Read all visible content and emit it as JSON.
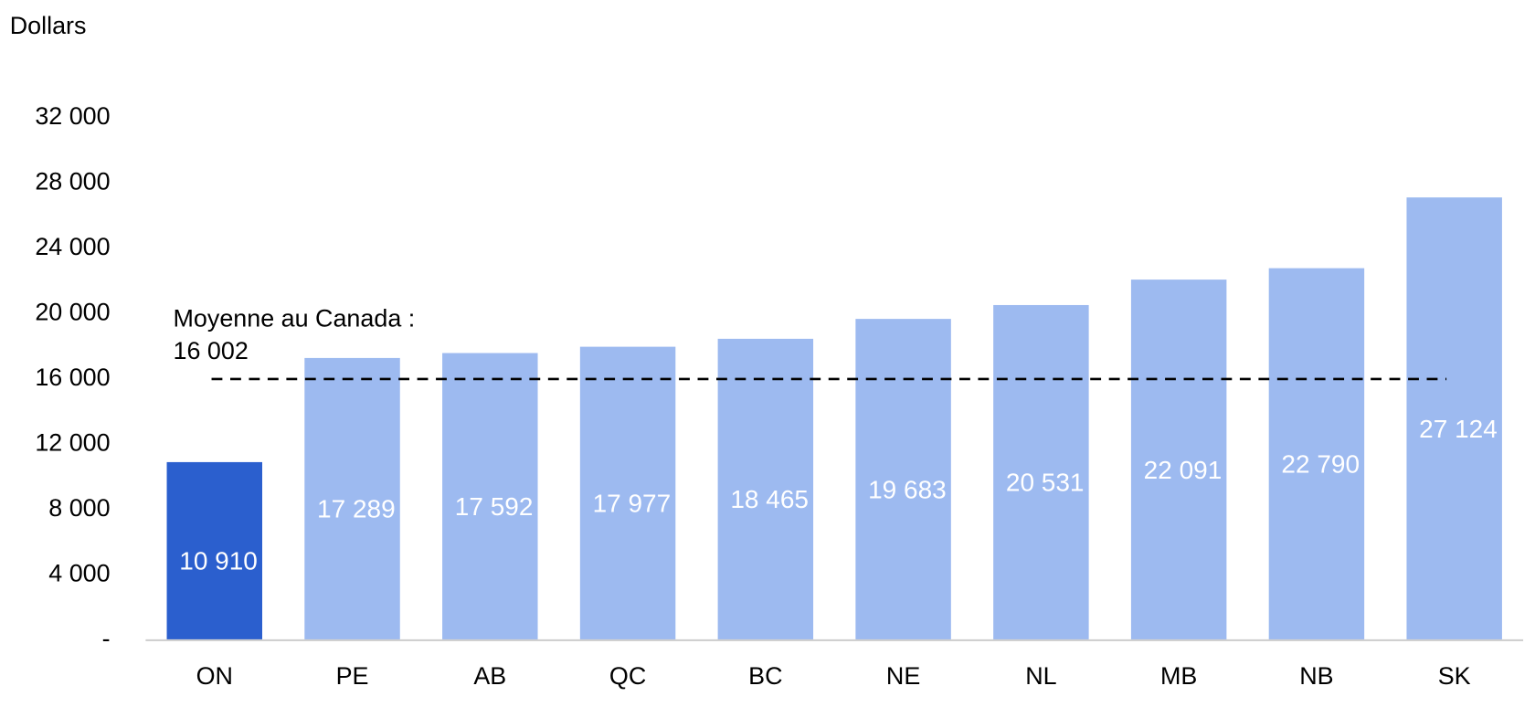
{
  "chart_data": {
    "type": "bar",
    "y_axis_label": "Dollars",
    "categories": [
      "ON",
      "PE",
      "AB",
      "QC",
      "BC",
      "NE",
      "NL",
      "MB",
      "NB",
      "SK"
    ],
    "values": [
      10910,
      17289,
      17592,
      17977,
      18465,
      19683,
      20531,
      22091,
      22790,
      27124
    ],
    "value_labels": [
      "10 910",
      "17 289",
      "17 592",
      "17 977",
      "18 465",
      "19 683",
      "20 531",
      "22 091",
      "22 790",
      "27 124"
    ],
    "colors": [
      "#2b5fce",
      "#9dbaf0",
      "#9dbaf0",
      "#9dbaf0",
      "#9dbaf0",
      "#9dbaf0",
      "#9dbaf0",
      "#9dbaf0",
      "#9dbaf0",
      "#9dbaf0"
    ],
    "ylim": [
      0,
      32000
    ],
    "yticks": [
      {
        "value": 0,
        "label": "-"
      },
      {
        "value": 4000,
        "label": "4 000"
      },
      {
        "value": 8000,
        "label": "8 000"
      },
      {
        "value": 12000,
        "label": "12 000"
      },
      {
        "value": 16000,
        "label": "16 000"
      },
      {
        "value": 20000,
        "label": "20 000"
      },
      {
        "value": 24000,
        "label": "24 000"
      },
      {
        "value": 28000,
        "label": "28 000"
      },
      {
        "value": 32000,
        "label": "32 000"
      }
    ],
    "grid": false,
    "reference_line": {
      "value": 16002,
      "label_lines": [
        "Moyenne au Canada :",
        "16 002"
      ]
    }
  }
}
